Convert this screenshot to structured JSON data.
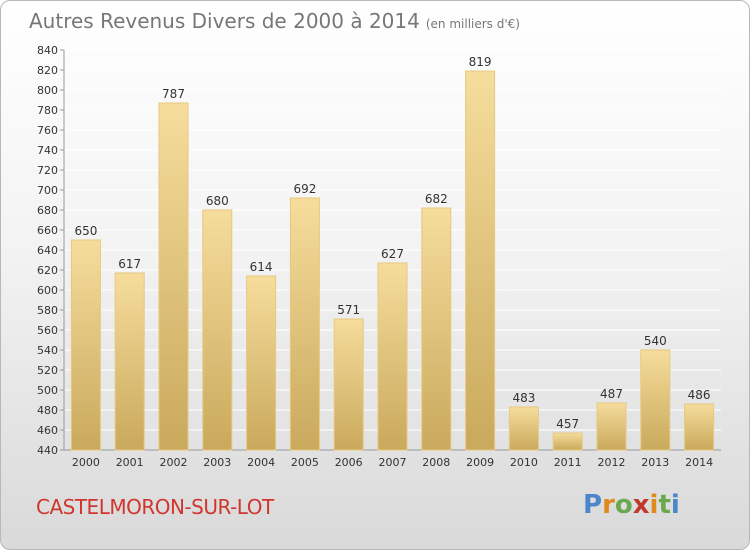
{
  "header": {
    "title": "Autres Revenus Divers de 2000 à 2014",
    "subtitle": "(en milliers d'€)"
  },
  "footer": {
    "place": "CASTELMORON-SUR-LOT",
    "logo_text": "Proxiti"
  },
  "colors": {
    "bar_top": "#f6dd9c",
    "bar_bottom": "#c9a95c",
    "bar_edge": "#e6c880",
    "grid": "#ffffff",
    "text": "#333333",
    "title": "#777777",
    "place": "#d0362f"
  },
  "chart_data": {
    "type": "bar",
    "title": "Autres Revenus Divers de 2000 à 2014",
    "subtitle": "(en milliers d'€)",
    "categories": [
      "2000",
      "2001",
      "2002",
      "2003",
      "2004",
      "2005",
      "2006",
      "2007",
      "2008",
      "2009",
      "2010",
      "2011",
      "2012",
      "2013",
      "2014"
    ],
    "values": [
      650,
      617,
      787,
      680,
      614,
      692,
      571,
      627,
      682,
      819,
      483,
      457,
      487,
      540,
      486
    ],
    "ylim": [
      440,
      840
    ],
    "ytick_step": 20,
    "grid": true,
    "xlabel": "",
    "ylabel": ""
  }
}
